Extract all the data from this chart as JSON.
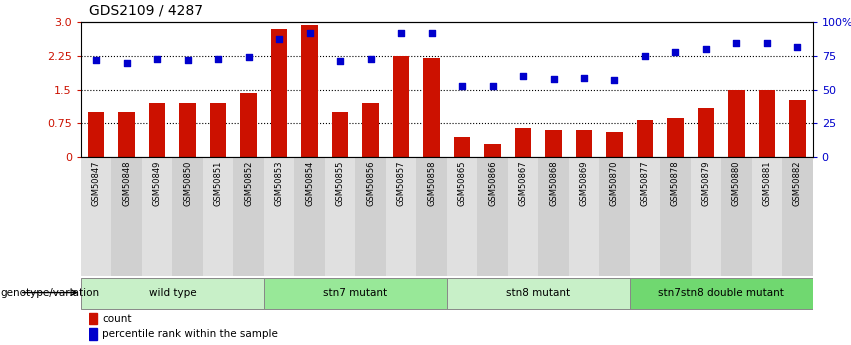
{
  "title": "GDS2109 / 4287",
  "samples": [
    "GSM50847",
    "GSM50848",
    "GSM50849",
    "GSM50850",
    "GSM50851",
    "GSM50852",
    "GSM50853",
    "GSM50854",
    "GSM50855",
    "GSM50856",
    "GSM50857",
    "GSM50858",
    "GSM50865",
    "GSM50866",
    "GSM50867",
    "GSM50868",
    "GSM50869",
    "GSM50870",
    "GSM50877",
    "GSM50878",
    "GSM50879",
    "GSM50880",
    "GSM50881",
    "GSM50882"
  ],
  "counts": [
    1.0,
    1.0,
    1.2,
    1.2,
    1.2,
    1.42,
    2.85,
    2.95,
    1.0,
    1.2,
    2.25,
    2.2,
    0.45,
    0.3,
    0.65,
    0.6,
    0.6,
    0.55,
    0.82,
    0.88,
    1.1,
    1.5,
    1.5,
    1.28
  ],
  "percentiles": [
    72,
    70,
    73,
    72,
    73,
    74,
    88,
    92,
    71,
    73,
    92,
    92,
    53,
    53,
    60,
    58,
    59,
    57,
    75,
    78,
    80,
    85,
    85,
    82
  ],
  "groups": [
    {
      "label": "wild type",
      "start": 0,
      "end": 6,
      "color": "#c8f0c8"
    },
    {
      "label": "stn7 mutant",
      "start": 6,
      "end": 12,
      "color": "#98e898"
    },
    {
      "label": "stn8 mutant",
      "start": 12,
      "end": 18,
      "color": "#c8f0c8"
    },
    {
      "label": "stn7stn8 double mutant",
      "start": 18,
      "end": 24,
      "color": "#70d870"
    }
  ],
  "bar_color": "#cc1100",
  "dot_color": "#0000cc",
  "ylim_left": [
    0,
    3.0
  ],
  "yticks_left": [
    0,
    0.75,
    1.5,
    2.25,
    3.0
  ],
  "yticks_right": [
    0,
    25,
    50,
    75,
    100
  ],
  "yticklabels_right": [
    "0",
    "25",
    "50",
    "75",
    "100%"
  ],
  "hlines": [
    0.75,
    1.5,
    2.25
  ],
  "group_label": "genotype/variation",
  "legend_count": "count",
  "legend_percentile": "percentile rank within the sample",
  "tick_bg_even": "#e0e0e0",
  "tick_bg_odd": "#d0d0d0"
}
